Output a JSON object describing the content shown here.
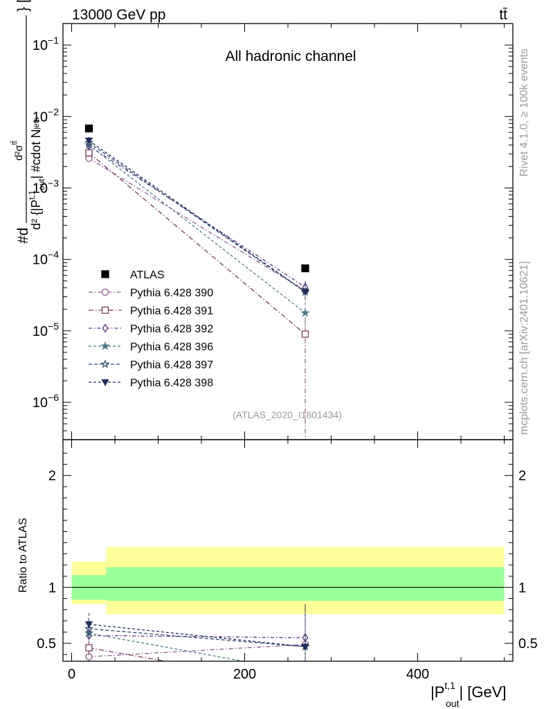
{
  "header": {
    "energy_label": "13000 GeV pp",
    "process_label": "tt̄"
  },
  "side_text": {
    "rivet": "Rivet 4.1.0, ≥ 100k events",
    "mcplots": "mcplots.cern.ch [arXiv:2401.10621]"
  },
  "chart_data": {
    "type": "line",
    "title": "All hadronic channel",
    "analysis_id": "(ATLAS_2020_I1801434)",
    "xlabel": "|P_out^{t,1}| [GeV]",
    "ylabel": "#d d²σ^{tt̄} / d² {|P_out^{t,1}| #cdot N_jets} [pb/GeV]",
    "xlim": [
      -10,
      510
    ],
    "ylim": [
      3e-07,
      0.2
    ],
    "yscale": "log",
    "x_ticks": [
      0,
      200,
      400
    ],
    "x_tick_labels": [
      "0",
      "200",
      "400"
    ],
    "y_ticks": [
      1e-06,
      1e-05,
      0.0001,
      0.001,
      0.01,
      0.1
    ],
    "y_tick_labels": [
      {
        "base": "10",
        "exp": "−6"
      },
      {
        "base": "10",
        "exp": "−5"
      },
      {
        "base": "10",
        "exp": "−4"
      },
      {
        "base": "10",
        "exp": "−3"
      },
      {
        "base": "10",
        "exp": "−2"
      },
      {
        "base": "10",
        "exp": "−1"
      }
    ],
    "x_bins": [
      [
        0,
        40
      ],
      [
        40,
        500
      ]
    ],
    "x": [
      20,
      270
    ],
    "reference": {
      "name": "ATLAS",
      "values": [
        0.0068,
        7.5e-05
      ],
      "color": "#000000",
      "marker": "square-filled"
    },
    "series": [
      {
        "name": "Pythia 6.428 390",
        "values": [
          0.0026,
          3.65e-05
        ],
        "color": "#8a5a8e",
        "dash": "6,3,1.5,3",
        "marker": "circle-open",
        "err_hi": [
          0.003,
          4.5e-05
        ],
        "err_lo": [
          0.0022,
          2.8e-05
        ]
      },
      {
        "name": "Pythia 6.428 391",
        "values": [
          0.0031,
          9e-06
        ],
        "color": "#7a3a5a",
        "dash": "7,3,1.5,3",
        "marker": "square-open",
        "err_hi": [
          0.0035,
          1.5e-05
        ],
        "err_lo": [
          0.0027,
          3e-07
        ]
      },
      {
        "name": "Pythia 6.428 392",
        "values": [
          0.0039,
          4.1e-05
        ],
        "color": "#5a2e8a",
        "dash": "5,3,1.5,3",
        "marker": "diamond-open",
        "err_hi": [
          0.0044,
          5e-05
        ],
        "err_lo": [
          0.0034,
          3.2e-05
        ]
      },
      {
        "name": "Pythia 6.428 396",
        "values": [
          0.004,
          1.78e-05
        ],
        "color": "#4a7a8a",
        "dash": "4,3",
        "marker": "star-filled",
        "err_hi": [
          0.0045,
          2.5e-05
        ],
        "err_lo": [
          0.0035,
          1.1e-05
        ]
      },
      {
        "name": "Pythia 6.428 397",
        "values": [
          0.0043,
          3.5e-05
        ],
        "color": "#2e4a6e",
        "dash": "5,3",
        "marker": "star-open",
        "err_hi": [
          0.0048,
          4.4e-05
        ],
        "err_lo": [
          0.0038,
          2.7e-05
        ]
      },
      {
        "name": "Pythia 6.428 398",
        "values": [
          0.0046,
          3.55e-05
        ],
        "color": "#1f2e5e",
        "dash": "4,3",
        "marker": "triangle-down-filled",
        "err_hi": [
          0.0052,
          4.5e-05
        ],
        "err_lo": [
          0.004,
          2.7e-05
        ]
      }
    ],
    "legend": {
      "placement": "lower-left"
    },
    "ratio": {
      "ylabel": "Ratio to ATLAS",
      "ylim": [
        0.34,
        2.32
      ],
      "y_ticks": [
        0.5,
        1,
        2
      ],
      "y_tick_labels": [
        "0.5",
        "1",
        "2"
      ],
      "band_inner": [
        [
          0.89,
          1.11
        ],
        [
          0.88,
          1.18
        ]
      ],
      "band_outer": [
        [
          0.85,
          1.23
        ],
        [
          0.76,
          1.36
        ]
      ],
      "series_values": [
        [
          0.38,
          0.49
        ],
        [
          0.46,
          0.12
        ],
        [
          0.57,
          0.55
        ],
        [
          0.59,
          0.24
        ],
        [
          0.63,
          0.47
        ],
        [
          0.67,
          0.47
        ]
      ],
      "series_err": [
        [
          0.06,
          0.35
        ],
        [
          0.07,
          0.35
        ],
        [
          0.07,
          0.3
        ],
        [
          0.08,
          0.35
        ],
        [
          0.09,
          0.35
        ],
        [
          0.1,
          0.38
        ]
      ]
    }
  }
}
